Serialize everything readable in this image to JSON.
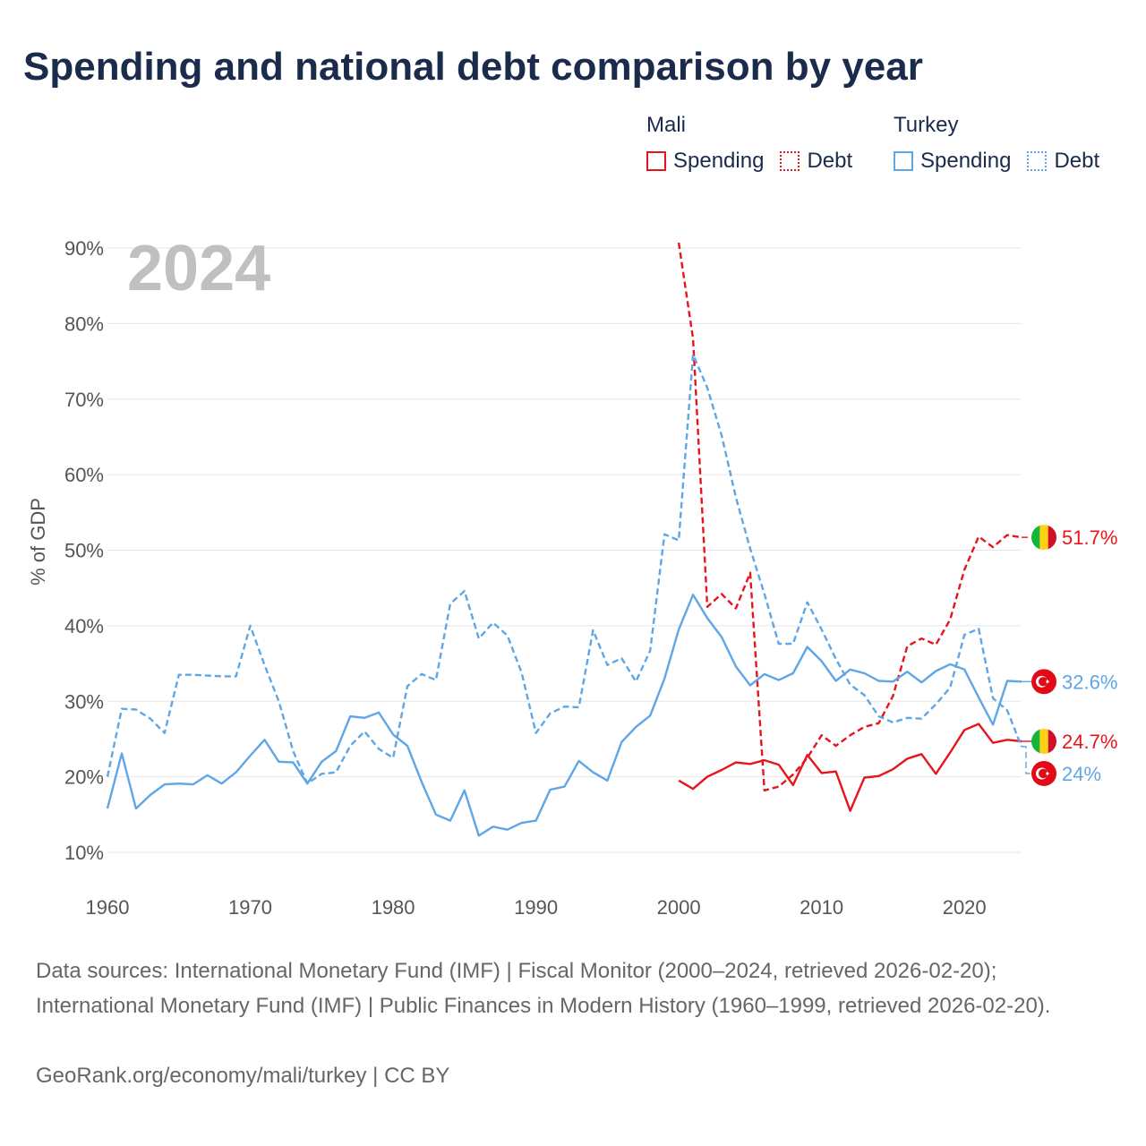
{
  "title": "Spending and national debt comparison by year",
  "legend": {
    "groups": [
      {
        "country": "Mali",
        "color": "#e8141c",
        "items": [
          {
            "label": "Spending",
            "style": "solid"
          },
          {
            "label": "Debt",
            "style": "dotted"
          }
        ]
      },
      {
        "country": "Turkey",
        "color": "#5ea6e6",
        "items": [
          {
            "label": "Spending",
            "style": "solid"
          },
          {
            "label": "Debt",
            "style": "dotted"
          }
        ]
      }
    ]
  },
  "chart_data": {
    "type": "line",
    "title": "Spending and national debt comparison by year",
    "year_label": "2024",
    "ylabel": "% of GDP",
    "xlim": [
      1960,
      2024
    ],
    "ylim": [
      10,
      90
    ],
    "x_ticks": [
      1960,
      1970,
      1980,
      1990,
      2000,
      2010,
      2020
    ],
    "y_ticks": [
      10,
      20,
      30,
      40,
      50,
      60,
      70,
      80,
      90
    ],
    "y_tick_labels": [
      "10%",
      "20%",
      "30%",
      "40%",
      "50%",
      "60%",
      "70%",
      "80%",
      "90%"
    ],
    "grid": true,
    "series": [
      {
        "name": "Mali Spending",
        "country": "Mali",
        "measure": "Spending",
        "color": "#e8141c",
        "dash": "solid",
        "x": [
          2000,
          2001,
          2002,
          2003,
          2004,
          2005,
          2006,
          2007,
          2008,
          2009,
          2010,
          2011,
          2012,
          2013,
          2014,
          2015,
          2016,
          2017,
          2018,
          2019,
          2020,
          2021,
          2022,
          2023,
          2024
        ],
        "values": [
          19.5,
          18.4,
          20.0,
          20.9,
          21.9,
          21.7,
          22.2,
          21.6,
          18.9,
          22.9,
          20.5,
          20.7,
          15.5,
          19.9,
          20.1,
          21.0,
          22.4,
          23.0,
          20.4,
          23.2,
          26.2,
          27.0,
          24.5,
          24.9,
          24.7
        ],
        "end_label": "24.7%",
        "flag": "mali-flag"
      },
      {
        "name": "Mali Debt",
        "country": "Mali",
        "measure": "Debt",
        "color": "#e8141c",
        "dash": "dashed",
        "x": [
          2000,
          2001,
          2002,
          2003,
          2004,
          2005,
          2006,
          2007,
          2008,
          2009,
          2010,
          2011,
          2012,
          2013,
          2014,
          2015,
          2016,
          2017,
          2018,
          2019,
          2020,
          2021,
          2022,
          2023,
          2024
        ],
        "values": [
          90.7,
          78.0,
          42.5,
          44.2,
          42.3,
          47.0,
          18.2,
          18.7,
          20.3,
          22.5,
          25.5,
          24.1,
          25.5,
          26.6,
          27.1,
          30.7,
          37.3,
          38.3,
          37.5,
          40.8,
          47.4,
          51.8,
          50.4,
          52.0,
          51.7
        ],
        "end_label": "51.7%",
        "flag": "mali-flag"
      },
      {
        "name": "Turkey Spending",
        "country": "Turkey",
        "measure": "Spending",
        "color": "#5ea6e6",
        "dash": "solid",
        "x": [
          1960,
          1961,
          1962,
          1963,
          1964,
          1965,
          1966,
          1967,
          1968,
          1969,
          1970,
          1971,
          1972,
          1973,
          1974,
          1975,
          1976,
          1977,
          1978,
          1979,
          1980,
          1981,
          1982,
          1983,
          1984,
          1985,
          1986,
          1987,
          1988,
          1989,
          1990,
          1991,
          1992,
          1993,
          1994,
          1995,
          1996,
          1997,
          1998,
          1999,
          2000,
          2001,
          2002,
          2003,
          2004,
          2005,
          2006,
          2007,
          2008,
          2009,
          2010,
          2011,
          2012,
          2013,
          2014,
          2015,
          2016,
          2017,
          2018,
          2019,
          2020,
          2021,
          2022,
          2023,
          2024
        ],
        "values": [
          15.8,
          23.1,
          15.8,
          17.6,
          19.0,
          19.1,
          19.0,
          20.2,
          19.1,
          20.6,
          22.8,
          24.9,
          22.0,
          21.9,
          19.1,
          22.0,
          23.4,
          28.0,
          27.8,
          28.5,
          25.6,
          24.1,
          19.3,
          15.0,
          14.2,
          18.2,
          12.2,
          13.4,
          13.0,
          13.9,
          14.2,
          18.3,
          18.7,
          22.1,
          20.6,
          19.5,
          24.6,
          26.6,
          28.1,
          33.0,
          39.5,
          44.1,
          41.0,
          38.5,
          34.6,
          32.1,
          33.6,
          32.8,
          33.7,
          37.2,
          35.3,
          32.7,
          34.2,
          33.7,
          32.7,
          32.6,
          33.9,
          32.5,
          34.0,
          34.9,
          34.2,
          30.5,
          26.9,
          32.7,
          32.6
        ],
        "end_label": "32.6%",
        "flag": "turkey-flag"
      },
      {
        "name": "Turkey Debt",
        "country": "Turkey",
        "measure": "Debt",
        "color": "#5ea6e6",
        "dash": "dashed",
        "x": [
          1960,
          1961,
          1962,
          1963,
          1964,
          1965,
          1966,
          1967,
          1968,
          1969,
          1970,
          1971,
          1972,
          1973,
          1974,
          1975,
          1976,
          1977,
          1978,
          1979,
          1980,
          1981,
          1982,
          1983,
          1984,
          1985,
          1986,
          1987,
          1988,
          1989,
          1990,
          1991,
          1992,
          1993,
          1994,
          1995,
          1996,
          1997,
          1998,
          1999,
          2000,
          2001,
          2002,
          2003,
          2004,
          2005,
          2006,
          2007,
          2008,
          2009,
          2010,
          2011,
          2012,
          2013,
          2014,
          2015,
          2016,
          2017,
          2018,
          2019,
          2020,
          2021,
          2022,
          2023,
          2024
        ],
        "values": [
          20.0,
          29.0,
          28.9,
          27.7,
          25.8,
          33.5,
          33.5,
          33.4,
          33.3,
          33.3,
          40.0,
          34.8,
          30.0,
          23.4,
          19.1,
          20.4,
          20.6,
          24.1,
          26.0,
          23.7,
          22.5,
          32.0,
          33.6,
          32.8,
          42.9,
          44.6,
          38.3,
          40.4,
          38.7,
          33.8,
          25.8,
          28.4,
          29.3,
          29.2,
          39.4,
          34.8,
          35.7,
          32.6,
          36.7,
          52.1,
          51.3,
          75.9,
          71.5,
          65.2,
          57.0,
          50.2,
          44.2,
          37.6,
          37.6,
          43.1,
          39.5,
          35.6,
          32.2,
          30.8,
          28.0,
          27.2,
          27.8,
          27.7,
          29.6,
          31.8,
          38.8,
          39.6,
          30.4,
          28.8,
          24.0
        ],
        "end_label": "24%",
        "flag": "turkey-flag"
      }
    ]
  },
  "footer": {
    "source": "Data sources: International Monetary Fund (IMF) | Fiscal Monitor (2000–2024, retrieved 2026-02-20); International Monetary Fund (IMF) | Public Finances in Modern History (1960–1999, retrieved 2026-02-20).",
    "credit": "GeoRank.org/economy/mali/turkey | CC BY"
  }
}
